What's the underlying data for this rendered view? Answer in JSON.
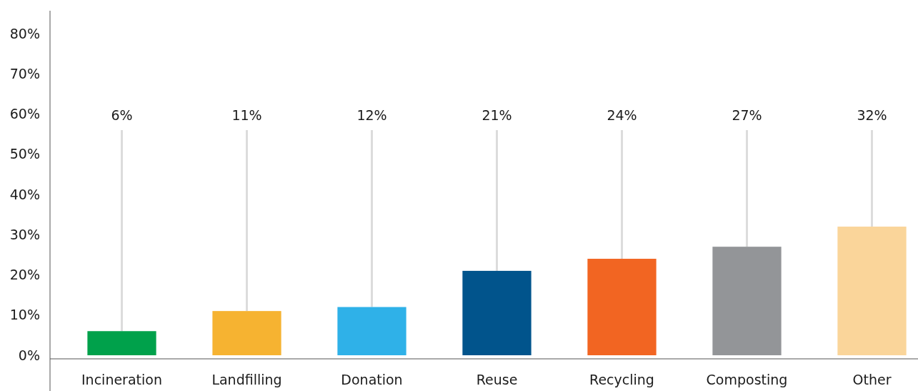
{
  "chart_data": {
    "type": "bar",
    "categories": [
      "Incineration",
      "Landfilling",
      "Donation",
      "Reuse",
      "Recycling",
      "Composting",
      "Other"
    ],
    "values": [
      6,
      11,
      12,
      21,
      24,
      27,
      32
    ],
    "colors": [
      "#00a14b",
      "#f6b331",
      "#2fb1e8",
      "#01548c",
      "#f26522",
      "#939598",
      "#fad59a"
    ],
    "ylim": [
      0,
      85
    ],
    "yticks": [
      {
        "value": 0,
        "label": "0%"
      },
      {
        "value": 10,
        "label": "10%"
      },
      {
        "value": 20,
        "label": "20%"
      },
      {
        "value": 30,
        "label": "30%"
      },
      {
        "value": 40,
        "label": "40%"
      },
      {
        "value": 50,
        "label": "50%"
      },
      {
        "value": 60,
        "label": "60%"
      },
      {
        "value": 70,
        "label": "70%"
      },
      {
        "value": 80,
        "label": "80%"
      }
    ],
    "data_labels": true,
    "value_labels": [
      "6%",
      "11%",
      "12%",
      "21%",
      "24%",
      "27%",
      "32%"
    ],
    "grid": false
  }
}
